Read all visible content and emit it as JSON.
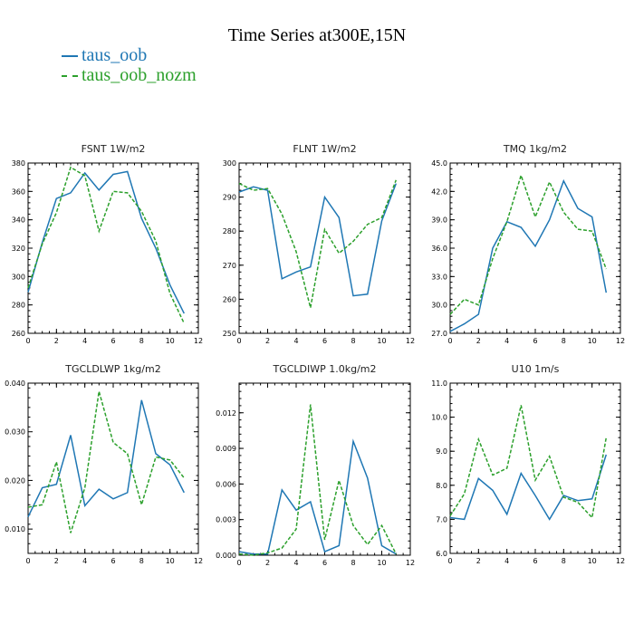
{
  "title": "Time Series at300E,15N",
  "legend": [
    {
      "label": "taus_oob",
      "color": "#1f77b4",
      "dash": "solid"
    },
    {
      "label": "taus_oob_nozm",
      "color": "#2ca02c",
      "dash": "dashed"
    }
  ],
  "chart_data": [
    {
      "type": "line",
      "title": "FSNT  1W/m2",
      "xlim": [
        0,
        12
      ],
      "xticks": [
        0,
        2,
        4,
        6,
        8,
        10,
        12
      ],
      "ylim": [
        260,
        380
      ],
      "yticks": [
        "260",
        "280",
        "300",
        "320",
        "340",
        "360",
        "380"
      ],
      "x": [
        0,
        1,
        2,
        3,
        4,
        5,
        6,
        7,
        8,
        9,
        10,
        11
      ],
      "series": [
        {
          "name": "taus_oob",
          "values": [
            289,
            324,
            355,
            359,
            373,
            361,
            372,
            374,
            341,
            320,
            294,
            274
          ]
        },
        {
          "name": "taus_oob_nozm",
          "values": [
            292,
            323,
            345,
            377,
            371,
            332,
            360,
            359,
            346,
            325,
            288,
            267
          ]
        }
      ]
    },
    {
      "type": "line",
      "title": "FLNT  1W/m2",
      "xlim": [
        0,
        12
      ],
      "xticks": [
        0,
        2,
        4,
        6,
        8,
        10,
        12
      ],
      "ylim": [
        250,
        300
      ],
      "yticks": [
        "250",
        "260",
        "270",
        "280",
        "290",
        "300"
      ],
      "x": [
        0,
        1,
        2,
        3,
        4,
        5,
        6,
        7,
        8,
        9,
        10,
        11
      ],
      "series": [
        {
          "name": "taus_oob",
          "values": [
            291.5,
            293,
            292,
            266,
            268,
            269.5,
            290,
            284,
            261,
            261.5,
            283,
            294
          ]
        },
        {
          "name": "taus_oob_nozm",
          "values": [
            294,
            292,
            292.5,
            285,
            274,
            257.5,
            280.5,
            273.5,
            277,
            282,
            284,
            295
          ]
        }
      ]
    },
    {
      "type": "line",
      "title": "TMQ  1kg/m2",
      "xlim": [
        0,
        12
      ],
      "xticks": [
        0,
        2,
        4,
        6,
        8,
        10,
        12
      ],
      "ylim": [
        27,
        45
      ],
      "yticks": [
        "27.0",
        "30.0",
        "33.0",
        "36.0",
        "39.0",
        "42.0",
        "45.0"
      ],
      "x": [
        0,
        1,
        2,
        3,
        4,
        5,
        6,
        7,
        8,
        9,
        10,
        11
      ],
      "series": [
        {
          "name": "taus_oob",
          "values": [
            27.2,
            28,
            29,
            36,
            38.8,
            38.2,
            36.2,
            39,
            43.1,
            40.2,
            39.3,
            31.3
          ]
        },
        {
          "name": "taus_oob_nozm",
          "values": [
            29,
            30.6,
            30,
            34.9,
            38.8,
            43.7,
            39.3,
            43,
            39.8,
            38,
            37.8,
            33.8
          ]
        }
      ]
    },
    {
      "type": "line",
      "title": "TGCLDLWP  1kg/m2",
      "xlim": [
        0,
        12
      ],
      "xticks": [
        0,
        2,
        4,
        6,
        8,
        10,
        12
      ],
      "ylim": [
        0.005,
        0.04
      ],
      "yticks": [
        "0.010",
        "0.020",
        "0.030",
        "0.040"
      ],
      "x": [
        0,
        1,
        2,
        3,
        4,
        5,
        6,
        7,
        8,
        9,
        10,
        11
      ],
      "series": [
        {
          "name": "taus_oob",
          "values": [
            0.0125,
            0.0185,
            0.0192,
            0.0293,
            0.0148,
            0.0182,
            0.0162,
            0.0175,
            0.0365,
            0.0255,
            0.0232,
            0.0175
          ]
        },
        {
          "name": "taus_oob_nozm",
          "values": [
            0.0145,
            0.015,
            0.0238,
            0.0092,
            0.0185,
            0.0383,
            0.0278,
            0.0255,
            0.015,
            0.0248,
            0.0242,
            0.0205
          ]
        }
      ]
    },
    {
      "type": "line",
      "title": "TGCLDIWP  1.0kg/m2",
      "xlim": [
        0,
        12
      ],
      "xticks": [
        0,
        2,
        4,
        6,
        8,
        10,
        12
      ],
      "ylim": [
        0,
        0.0145
      ],
      "yticks": [
        "0.000",
        "0.003",
        "0.006",
        "0.009",
        "0.012"
      ],
      "x": [
        0,
        1,
        2,
        3,
        4,
        5,
        6,
        7,
        8,
        9,
        10,
        11
      ],
      "series": [
        {
          "name": "taus_oob",
          "values": [
            0.0003,
            0.0001,
            0.0001,
            0.0055,
            0.0038,
            0.0045,
            0.0003,
            0.0008,
            0.0096,
            0.0065,
            0.0008,
            0.0001
          ]
        },
        {
          "name": "taus_oob_nozm",
          "values": [
            0.0001,
            0.0,
            0.0002,
            0.0006,
            0.0022,
            0.0127,
            0.0013,
            0.0063,
            0.0025,
            0.0009,
            0.0025,
            0.0001
          ]
        }
      ]
    },
    {
      "type": "line",
      "title": "U10  1m/s",
      "xlim": [
        0,
        12
      ],
      "xticks": [
        0,
        2,
        4,
        6,
        8,
        10,
        12
      ],
      "ylim": [
        6,
        11
      ],
      "yticks": [
        "6.0",
        "7.0",
        "8.0",
        "9.0",
        "10.0",
        "11.0"
      ],
      "x": [
        0,
        1,
        2,
        3,
        4,
        5,
        6,
        7,
        8,
        9,
        10,
        11
      ],
      "series": [
        {
          "name": "taus_oob",
          "values": [
            7.05,
            7.0,
            8.2,
            7.85,
            7.15,
            8.35,
            7.7,
            7.0,
            7.7,
            7.55,
            7.6,
            8.9
          ]
        },
        {
          "name": "taus_oob_nozm",
          "values": [
            7.1,
            7.75,
            9.35,
            8.3,
            8.5,
            10.35,
            8.15,
            8.85,
            7.65,
            7.5,
            7.05,
            9.4
          ]
        }
      ]
    }
  ]
}
